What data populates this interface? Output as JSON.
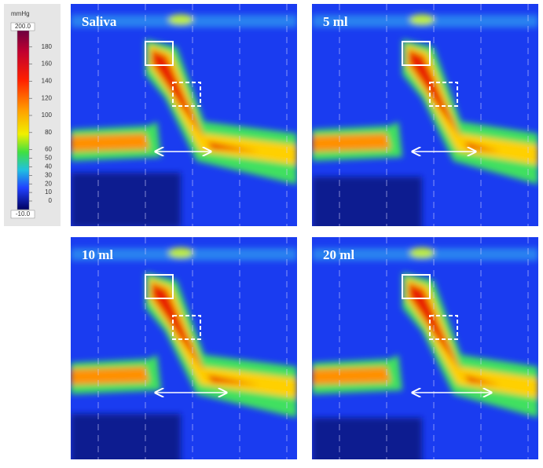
{
  "colorbar": {
    "unit": "mmHg",
    "max_label": "200.0",
    "min_label": "-10.0",
    "max": 200,
    "min": -10,
    "ticks": [
      180,
      160,
      140,
      120,
      100,
      80,
      60,
      50,
      40,
      30,
      20,
      10,
      0
    ]
  },
  "panels": [
    {
      "label": "Saliva"
    },
    {
      "label": "5 ml"
    },
    {
      "label": "10 ml"
    },
    {
      "label": "20 ml"
    }
  ]
}
